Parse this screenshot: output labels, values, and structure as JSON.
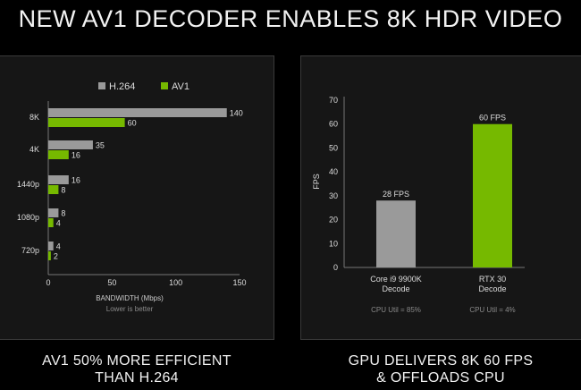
{
  "headline": "NEW AV1 DECODER ENABLES 8K HDR VIDEO",
  "captions": {
    "left": [
      "AV1 50% MORE EFFICIENT",
      "THAN H.264"
    ],
    "right": [
      "GPU DELIVERS 8K 60 FPS",
      "& OFFLOADS CPU"
    ]
  },
  "chart_data": [
    {
      "type": "bar",
      "orientation": "horizontal",
      "categories": [
        "8K",
        "4K",
        "1440p",
        "1080p",
        "720p"
      ],
      "series": [
        {
          "name": "H.264",
          "color": "#9a9a9a",
          "values": [
            140,
            35,
            16,
            8,
            4
          ]
        },
        {
          "name": "AV1",
          "color": "#76b900",
          "values": [
            60,
            16,
            8,
            4,
            2
          ]
        }
      ],
      "xlabel": "BANDWIDTH (Mbps)",
      "subtitle": "Lower is better",
      "xlim": [
        0,
        150
      ],
      "xticks": [
        0,
        50,
        100,
        150
      ],
      "legend": "top",
      "grid": false
    },
    {
      "type": "bar",
      "orientation": "vertical",
      "categories": [
        [
          "Core i9 9900K",
          "Decode"
        ],
        [
          "RTX 30",
          "Decode"
        ]
      ],
      "values": [
        28,
        60
      ],
      "data_labels": [
        "28 FPS",
        "60 FPS"
      ],
      "colors": [
        "#9a9a9a",
        "#76b900"
      ],
      "notes": [
        "CPU Util = 85%",
        "CPU Util = 4%"
      ],
      "ylabel": "FPS",
      "ylim": [
        0,
        70
      ],
      "yticks": [
        0,
        10,
        20,
        30,
        40,
        50,
        60,
        70
      ],
      "grid": false
    }
  ]
}
